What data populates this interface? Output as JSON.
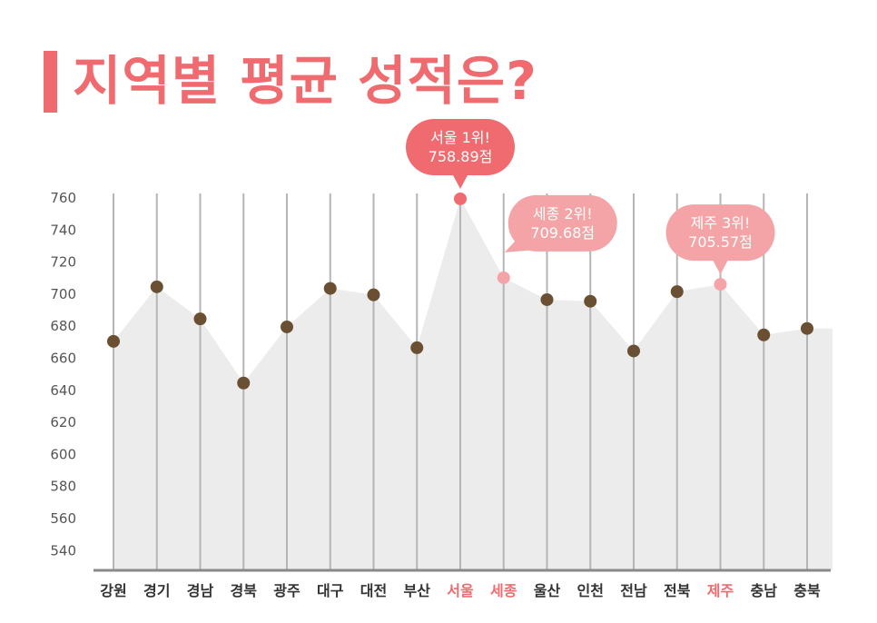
{
  "title": "지역별 평균 성적은?",
  "colors": {
    "accent": "#ef6b6f",
    "accent_light": "#f4a4a6",
    "point": "#6b4f33",
    "area": "#ececec",
    "gridline": "#b5b5b5",
    "axis": "#8a8a8a",
    "label": "#333333"
  },
  "chart_data": {
    "type": "line",
    "title": "지역별 평균 성적은?",
    "xlabel": "",
    "ylabel": "",
    "ylim": [
      530,
      760
    ],
    "yticks": [
      540,
      560,
      580,
      600,
      620,
      640,
      660,
      680,
      700,
      720,
      740,
      760
    ],
    "grid": "vertical",
    "categories": [
      "강원",
      "경기",
      "경남",
      "경북",
      "광주",
      "대구",
      "대전",
      "부산",
      "서울",
      "세종",
      "울산",
      "인천",
      "전남",
      "전북",
      "제주",
      "충남",
      "충북"
    ],
    "series": [
      {
        "values": [
          670,
          704,
          684,
          644,
          679,
          703,
          699,
          666,
          758.89,
          709.68,
          696,
          695,
          664,
          701,
          705.57,
          674,
          678
        ]
      }
    ],
    "highlighted_categories": [
      "서울",
      "세종",
      "제주"
    ],
    "annotations": [
      {
        "category": "서울",
        "line1": "서울 1위!",
        "line2": "758.89점",
        "style": "strong",
        "placement": "above"
      },
      {
        "category": "세종",
        "line1": "세종 2위!",
        "line2": "709.68점",
        "style": "light",
        "placement": "upper-right"
      },
      {
        "category": "제주",
        "line1": "제주 3위!",
        "line2": "705.57점",
        "style": "light",
        "placement": "above"
      }
    ]
  }
}
